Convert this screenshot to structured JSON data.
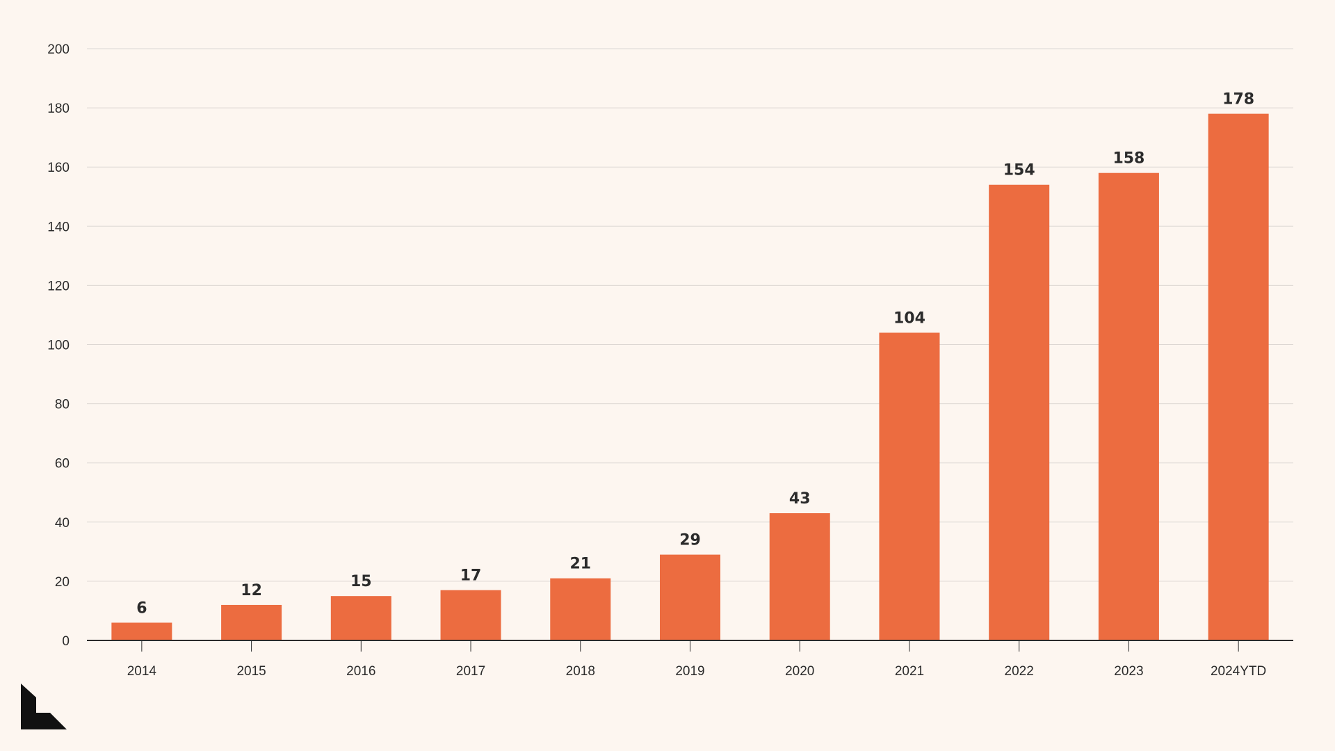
{
  "colors": {
    "background": "#fdf6f0",
    "bar": "#ec6c40",
    "gridline": "#dcd7d3",
    "axis": "#2b2b2b",
    "text": "#2b2b2b",
    "logo": "#111111"
  },
  "logo": {
    "icon": "brand-logo-icon"
  },
  "chart_data": {
    "type": "bar",
    "title": "",
    "xlabel": "",
    "ylabel": "",
    "categories": [
      "2014",
      "2015",
      "2016",
      "2017",
      "2018",
      "2019",
      "2020",
      "2021",
      "2022",
      "2023",
      "2024YTD"
    ],
    "values": [
      6,
      12,
      15,
      17,
      21,
      29,
      43,
      104,
      154,
      158,
      178
    ],
    "data_labels": [
      "6",
      "12",
      "15",
      "17",
      "21",
      "29",
      "43",
      "104",
      "154",
      "158",
      "178"
    ],
    "ylim": [
      0,
      200
    ],
    "yticks": [
      0,
      20,
      40,
      60,
      80,
      100,
      120,
      140,
      160,
      180,
      200
    ],
    "grid": true,
    "legend": "none"
  }
}
